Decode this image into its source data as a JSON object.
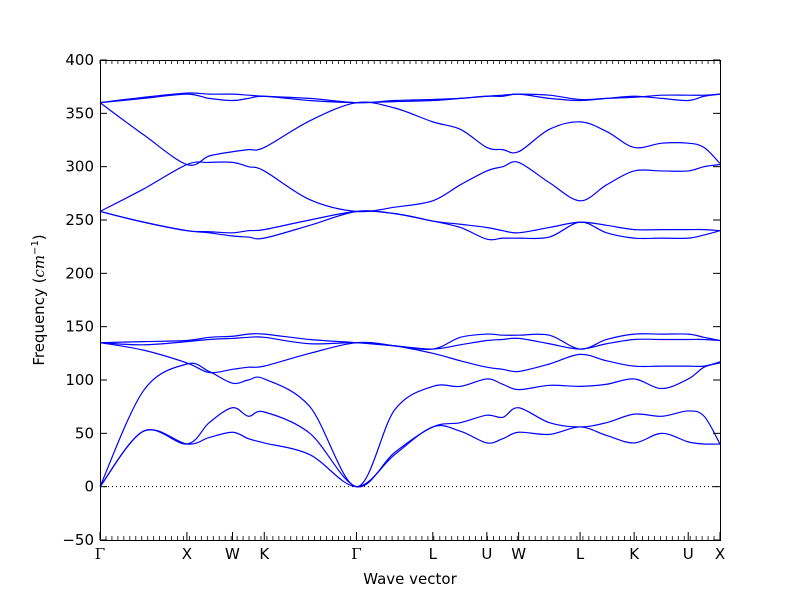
{
  "chart_data": {
    "type": "line",
    "title": "",
    "xlabel": "Wave vector",
    "ylabel": {
      "prefix": "Frequency (",
      "unit_base": "cm",
      "unit_exp": "−1",
      "suffix": ")"
    },
    "ylim": [
      -50,
      400
    ],
    "yticks": [
      -50,
      0,
      50,
      100,
      150,
      200,
      250,
      300,
      350,
      400
    ],
    "ytick_labels": [
      "−50",
      "0",
      "50",
      "100",
      "150",
      "200",
      "250",
      "300",
      "350",
      "400"
    ],
    "xlim": [
      0,
      5.85
    ],
    "high_symmetry_points": [
      {
        "label": "Γ",
        "x": 0.0
      },
      {
        "label": "X",
        "x": 0.82
      },
      {
        "label": "W",
        "x": 1.25
      },
      {
        "label": "K",
        "x": 1.55
      },
      {
        "label": "Γ",
        "x": 2.42
      },
      {
        "label": "L",
        "x": 3.14
      },
      {
        "label": "U",
        "x": 3.65
      },
      {
        "label": "W",
        "x": 3.95
      },
      {
        "label": "L",
        "x": 4.53
      },
      {
        "label": "K",
        "x": 5.04
      },
      {
        "label": "U",
        "x": 5.55
      },
      {
        "label": "X",
        "x": 5.85
      }
    ],
    "zero_line": true,
    "line_color": "#0000ff",
    "bands": [
      {
        "x": [
          0,
          0.41,
          0.82,
          1.03,
          1.25,
          1.4,
          1.55,
          1.98,
          2.42,
          2.78,
          3.14,
          3.4,
          3.65,
          3.8,
          3.95,
          4.24,
          4.53,
          4.78,
          5.04,
          5.3,
          5.55,
          5.7,
          5.85
        ],
        "y": [
          0,
          52,
          40,
          46,
          51,
          45,
          41,
          30,
          0,
          30,
          56,
          52,
          41,
          45,
          51,
          49,
          56,
          48,
          41,
          50,
          42,
          40,
          40
        ]
      },
      {
        "x": [
          0,
          0.41,
          0.82,
          1.03,
          1.25,
          1.4,
          1.55,
          1.98,
          2.42,
          2.78,
          3.14,
          3.4,
          3.65,
          3.8,
          3.95,
          4.24,
          4.53,
          4.78,
          5.04,
          5.3,
          5.55,
          5.7,
          5.85
        ],
        "y": [
          0,
          52,
          40,
          60,
          74,
          66,
          70,
          50,
          0,
          32,
          56,
          60,
          67,
          65,
          74,
          60,
          56,
          60,
          68,
          66,
          71,
          66,
          40
        ]
      },
      {
        "x": [
          0,
          0.41,
          0.82,
          1.03,
          1.25,
          1.4,
          1.55,
          1.98,
          2.42,
          2.78,
          3.14,
          3.4,
          3.65,
          3.8,
          3.95,
          4.24,
          4.53,
          4.78,
          5.04,
          5.3,
          5.55,
          5.7,
          5.85
        ],
        "y": [
          0,
          90,
          115,
          108,
          97,
          100,
          101,
          75,
          0,
          72,
          94,
          94,
          101,
          96,
          91,
          95,
          94,
          96,
          101,
          92,
          101,
          112,
          116
        ]
      },
      {
        "x": [
          0,
          0.41,
          0.82,
          1.03,
          1.25,
          1.4,
          1.55,
          1.98,
          2.42,
          2.78,
          3.14,
          3.4,
          3.65,
          3.8,
          3.95,
          4.24,
          4.53,
          4.78,
          5.04,
          5.3,
          5.55,
          5.7,
          5.85
        ],
        "y": [
          135,
          128,
          116,
          107,
          110,
          112,
          113,
          125,
          135,
          132,
          125,
          118,
          112,
          110,
          108,
          115,
          124,
          118,
          113,
          113,
          113,
          113,
          117
        ]
      },
      {
        "x": [
          0,
          0.41,
          0.82,
          1.03,
          1.25,
          1.4,
          1.55,
          1.98,
          2.42,
          2.78,
          3.14,
          3.4,
          3.65,
          3.8,
          3.95,
          4.24,
          4.53,
          4.78,
          5.04,
          5.3,
          5.55,
          5.7,
          5.85
        ],
        "y": [
          135,
          133,
          136,
          138,
          139,
          140,
          140,
          134,
          135,
          132,
          129,
          133,
          137,
          138,
          139,
          134,
          129,
          134,
          138,
          138,
          138,
          138,
          137
        ]
      },
      {
        "x": [
          0,
          0.41,
          0.82,
          1.03,
          1.25,
          1.4,
          1.55,
          1.98,
          2.42,
          2.78,
          3.14,
          3.4,
          3.65,
          3.8,
          3.95,
          4.24,
          4.53,
          4.78,
          5.04,
          5.3,
          5.55,
          5.7,
          5.85
        ],
        "y": [
          135,
          136,
          137,
          140,
          141,
          143,
          143,
          138,
          135,
          132,
          129,
          140,
          143,
          142,
          142,
          142,
          129,
          138,
          143,
          143,
          143,
          140,
          137
        ]
      },
      {
        "x": [
          0,
          0.41,
          0.82,
          1.03,
          1.25,
          1.4,
          1.55,
          1.98,
          2.42,
          2.78,
          3.14,
          3.4,
          3.65,
          3.8,
          3.95,
          4.24,
          4.53,
          4.78,
          5.04,
          5.3,
          5.55,
          5.7,
          5.85
        ],
        "y": [
          258,
          248,
          240,
          238,
          235,
          234,
          233,
          245,
          258,
          256,
          249,
          243,
          232,
          233,
          233,
          234,
          248,
          238,
          233,
          233,
          233,
          236,
          240
        ]
      },
      {
        "x": [
          0,
          0.41,
          0.82,
          1.03,
          1.25,
          1.4,
          1.55,
          1.98,
          2.42,
          2.78,
          3.14,
          3.4,
          3.65,
          3.8,
          3.95,
          4.24,
          4.53,
          4.78,
          5.04,
          5.3,
          5.55,
          5.7,
          5.85
        ],
        "y": [
          258,
          248,
          240,
          239,
          238,
          240,
          241,
          250,
          258,
          256,
          249,
          246,
          243,
          240,
          238,
          243,
          248,
          245,
          241,
          241,
          241,
          241,
          240
        ]
      },
      {
        "x": [
          0,
          0.41,
          0.82,
          1.03,
          1.25,
          1.4,
          1.55,
          1.98,
          2.42,
          2.78,
          3.14,
          3.4,
          3.65,
          3.8,
          3.95,
          4.24,
          4.53,
          4.78,
          5.04,
          5.3,
          5.55,
          5.7,
          5.85
        ],
        "y": [
          258,
          279,
          302,
          304,
          304,
          300,
          296,
          269,
          258,
          262,
          268,
          283,
          296,
          300,
          304,
          285,
          268,
          283,
          296,
          296,
          296,
          300,
          302
        ]
      },
      {
        "x": [
          0,
          0.41,
          0.82,
          1.03,
          1.25,
          1.4,
          1.55,
          1.98,
          2.42,
          2.78,
          3.14,
          3.4,
          3.65,
          3.8,
          3.95,
          4.24,
          4.53,
          4.78,
          5.04,
          5.3,
          5.55,
          5.7,
          5.85
        ],
        "y": [
          360,
          330,
          302,
          310,
          314,
          316,
          318,
          343,
          360,
          355,
          342,
          335,
          318,
          316,
          314,
          335,
          342,
          333,
          318,
          322,
          322,
          318,
          303
        ]
      },
      {
        "x": [
          0,
          0.41,
          0.82,
          1.03,
          1.25,
          1.4,
          1.55,
          1.98,
          2.42,
          2.78,
          3.14,
          3.4,
          3.65,
          3.8,
          3.95,
          4.24,
          4.53,
          4.78,
          5.04,
          5.3,
          5.55,
          5.7,
          5.85
        ],
        "y": [
          360,
          364,
          368,
          364,
          362,
          364,
          366,
          362,
          360,
          361,
          362,
          364,
          366,
          366,
          368,
          364,
          362,
          364,
          366,
          364,
          362,
          366,
          368
        ]
      },
      {
        "x": [
          0,
          0.41,
          0.82,
          1.03,
          1.25,
          1.4,
          1.55,
          1.98,
          2.42,
          2.78,
          3.14,
          3.4,
          3.65,
          3.8,
          3.95,
          4.24,
          4.53,
          4.78,
          5.04,
          5.3,
          5.55,
          5.7,
          5.85
        ],
        "y": [
          360,
          365,
          369,
          368,
          368,
          367,
          366,
          364,
          360,
          362,
          363,
          364,
          366,
          367,
          368,
          367,
          363,
          364,
          365,
          367,
          367,
          367,
          368
        ]
      }
    ]
  }
}
